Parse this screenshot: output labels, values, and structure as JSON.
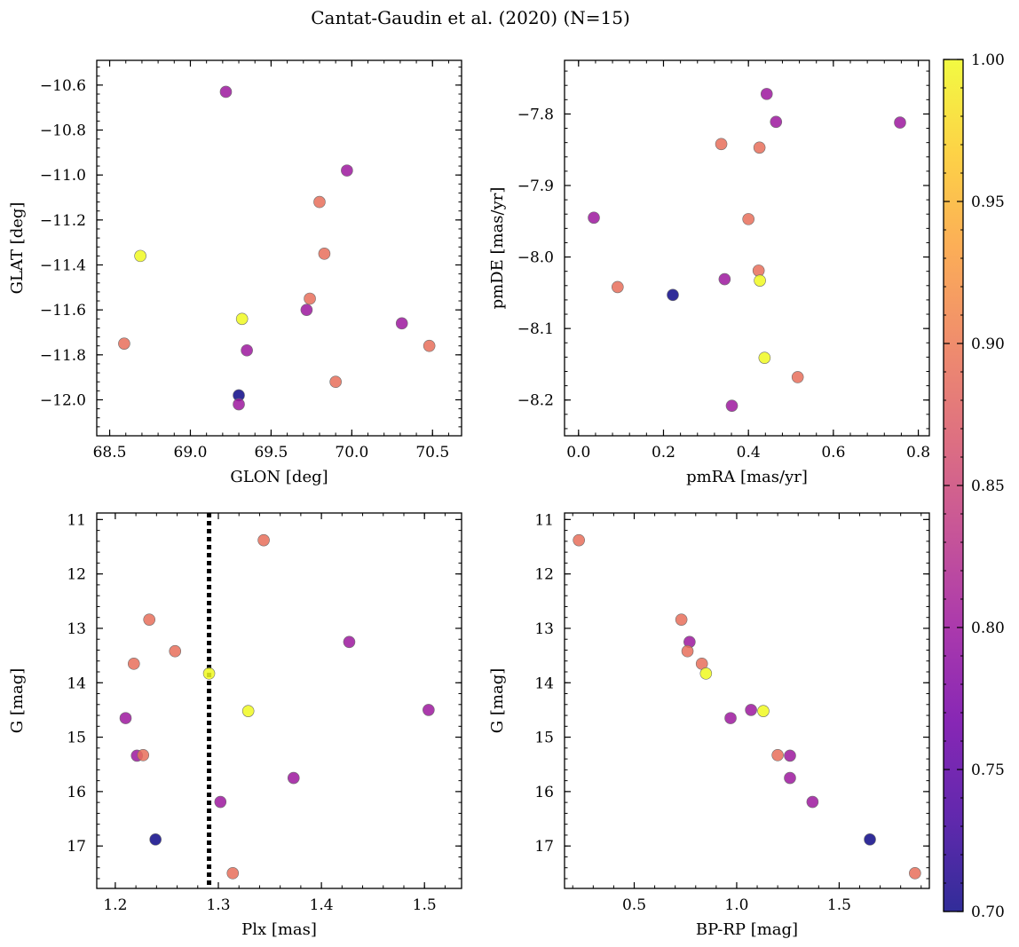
{
  "figure": {
    "title": "Cantat-Gaudin et al. (2020) (N=15)"
  },
  "colorbar": {
    "colormap": "plasma",
    "range": [
      0.7,
      1.0
    ],
    "tick_values": [
      0.7,
      0.75,
      0.8,
      0.85,
      0.9,
      0.95,
      1.0
    ],
    "tick_labels": [
      "0.70",
      "0.75",
      "0.80",
      "0.85",
      "0.90",
      "0.95",
      "1.00"
    ],
    "stops": [
      "#0d0887",
      "#46039f",
      "#7201a8",
      "#9c179e",
      "#bd3786",
      "#d8576b",
      "#ed7953",
      "#fb9f3a",
      "#fdca26",
      "#f0f921"
    ]
  },
  "chart_data": [
    {
      "id": "glon-glat",
      "type": "scatter",
      "xlabel": "GLON [deg]",
      "ylabel": "GLAT [deg]",
      "xlim": [
        68.42,
        70.68
      ],
      "ylim": [
        -12.16,
        -10.49
      ],
      "y_inverted": false,
      "xticks": [
        68.5,
        69.0,
        69.5,
        70.0,
        70.5
      ],
      "xtick_labels": [
        "68.5",
        "69.0",
        "69.5",
        "70.0",
        "70.5"
      ],
      "yticks": [
        -10.6,
        -10.8,
        -11.0,
        -11.2,
        -11.4,
        -11.6,
        -11.8,
        -12.0
      ],
      "ytick_labels": [
        "−10.6",
        "−10.8",
        "−11.0",
        "−11.2",
        "−11.4",
        "−11.6",
        "−11.8",
        "−12.0"
      ],
      "points": [
        {
          "x": 69.22,
          "y": -10.63,
          "c": 0.8
        },
        {
          "x": 69.97,
          "y": -10.98,
          "c": 0.8
        },
        {
          "x": 69.8,
          "y": -11.12,
          "c": 0.89
        },
        {
          "x": 68.69,
          "y": -11.36,
          "c": 1.0
        },
        {
          "x": 69.83,
          "y": -11.35,
          "c": 0.89
        },
        {
          "x": 69.74,
          "y": -11.55,
          "c": 0.89
        },
        {
          "x": 69.72,
          "y": -11.6,
          "c": 0.8
        },
        {
          "x": 69.32,
          "y": -11.64,
          "c": 1.0
        },
        {
          "x": 70.31,
          "y": -11.66,
          "c": 0.8
        },
        {
          "x": 68.59,
          "y": -11.75,
          "c": 0.89
        },
        {
          "x": 70.48,
          "y": -11.76,
          "c": 0.89
        },
        {
          "x": 69.35,
          "y": -11.78,
          "c": 0.8
        },
        {
          "x": 69.9,
          "y": -11.92,
          "c": 0.89
        },
        {
          "x": 69.3,
          "y": -11.98,
          "c": 0.7
        },
        {
          "x": 69.3,
          "y": -12.02,
          "c": 0.8
        }
      ]
    },
    {
      "id": "pmra-pmde",
      "type": "scatter",
      "xlabel": "pmRA [mas/yr]",
      "ylabel": "pmDE [mas/yr]",
      "xlim": [
        -0.033,
        0.826
      ],
      "ylim": [
        -8.25,
        -7.725
      ],
      "y_inverted": false,
      "xticks": [
        0.0,
        0.2,
        0.4,
        0.6,
        0.8
      ],
      "xtick_labels": [
        "0.0",
        "0.2",
        "0.4",
        "0.6",
        "0.8"
      ],
      "yticks": [
        -7.8,
        -7.9,
        -8.0,
        -8.1,
        -8.2
      ],
      "ytick_labels": [
        "−7.8",
        "−7.9",
        "−8.0",
        "−8.1",
        "−8.2"
      ],
      "points": [
        {
          "x": 0.443,
          "y": -7.772,
          "c": 0.8
        },
        {
          "x": 0.465,
          "y": -7.811,
          "c": 0.8
        },
        {
          "x": 0.757,
          "y": -7.812,
          "c": 0.8
        },
        {
          "x": 0.336,
          "y": -7.842,
          "c": 0.89
        },
        {
          "x": 0.426,
          "y": -7.847,
          "c": 0.89
        },
        {
          "x": 0.036,
          "y": -7.945,
          "c": 0.8
        },
        {
          "x": 0.4,
          "y": -7.947,
          "c": 0.89
        },
        {
          "x": 0.424,
          "y": -8.019,
          "c": 0.89
        },
        {
          "x": 0.344,
          "y": -8.031,
          "c": 0.8
        },
        {
          "x": 0.427,
          "y": -8.033,
          "c": 1.0
        },
        {
          "x": 0.092,
          "y": -8.042,
          "c": 0.89
        },
        {
          "x": 0.222,
          "y": -8.053,
          "c": 0.7
        },
        {
          "x": 0.438,
          "y": -8.141,
          "c": 1.0
        },
        {
          "x": 0.516,
          "y": -8.168,
          "c": 0.89
        },
        {
          "x": 0.361,
          "y": -8.208,
          "c": 0.8
        }
      ]
    },
    {
      "id": "plx-g",
      "type": "scatter",
      "xlabel": "Plx [mas]",
      "ylabel": "G [mag]",
      "xlim": [
        1.182,
        1.536
      ],
      "ylim": [
        10.88,
        17.78
      ],
      "y_inverted": true,
      "xticks": [
        1.2,
        1.3,
        1.4,
        1.5
      ],
      "xtick_labels": [
        "1.2",
        "1.3",
        "1.4",
        "1.5"
      ],
      "yticks": [
        11,
        12,
        13,
        14,
        15,
        16,
        17
      ],
      "ytick_labels": [
        "11",
        "12",
        "13",
        "14",
        "15",
        "16",
        "17"
      ],
      "vline": {
        "x": 1.291,
        "style": "dotted"
      },
      "points": [
        {
          "x": 1.344,
          "y": 11.38,
          "c": 0.89
        },
        {
          "x": 1.233,
          "y": 12.84,
          "c": 0.89
        },
        {
          "x": 1.427,
          "y": 13.25,
          "c": 0.8
        },
        {
          "x": 1.258,
          "y": 13.42,
          "c": 0.89
        },
        {
          "x": 1.218,
          "y": 13.65,
          "c": 0.89
        },
        {
          "x": 1.291,
          "y": 13.83,
          "c": 1.0
        },
        {
          "x": 1.504,
          "y": 14.5,
          "c": 0.8
        },
        {
          "x": 1.329,
          "y": 14.52,
          "c": 1.0
        },
        {
          "x": 1.21,
          "y": 14.65,
          "c": 0.8
        },
        {
          "x": 1.221,
          "y": 15.34,
          "c": 0.8
        },
        {
          "x": 1.227,
          "y": 15.33,
          "c": 0.89
        },
        {
          "x": 1.373,
          "y": 15.75,
          "c": 0.8
        },
        {
          "x": 1.302,
          "y": 16.19,
          "c": 0.8
        },
        {
          "x": 1.239,
          "y": 16.88,
          "c": 0.7
        },
        {
          "x": 1.314,
          "y": 17.5,
          "c": 0.89
        }
      ]
    },
    {
      "id": "bprp-g",
      "type": "scatter",
      "xlabel": "BP-RP [mag]",
      "ylabel": "G [mag]",
      "xlim": [
        0.16,
        1.94
      ],
      "ylim": [
        10.88,
        17.78
      ],
      "y_inverted": true,
      "xticks": [
        0.5,
        1.0,
        1.5
      ],
      "xtick_labels": [
        "0.5",
        "1.0",
        "1.5"
      ],
      "yticks": [
        11,
        12,
        13,
        14,
        15,
        16,
        17
      ],
      "ytick_labels": [
        "11",
        "12",
        "13",
        "14",
        "15",
        "16",
        "17"
      ],
      "points": [
        {
          "x": 0.23,
          "y": 11.38,
          "c": 0.89
        },
        {
          "x": 0.73,
          "y": 12.84,
          "c": 0.89
        },
        {
          "x": 0.77,
          "y": 13.25,
          "c": 0.8
        },
        {
          "x": 0.76,
          "y": 13.42,
          "c": 0.89
        },
        {
          "x": 0.83,
          "y": 13.65,
          "c": 0.89
        },
        {
          "x": 0.85,
          "y": 13.83,
          "c": 1.0
        },
        {
          "x": 1.07,
          "y": 14.5,
          "c": 0.8
        },
        {
          "x": 1.13,
          "y": 14.52,
          "c": 1.0
        },
        {
          "x": 0.97,
          "y": 14.65,
          "c": 0.8
        },
        {
          "x": 1.26,
          "y": 15.34,
          "c": 0.8
        },
        {
          "x": 1.2,
          "y": 15.33,
          "c": 0.89
        },
        {
          "x": 1.26,
          "y": 15.75,
          "c": 0.8
        },
        {
          "x": 1.37,
          "y": 16.19,
          "c": 0.8
        },
        {
          "x": 1.65,
          "y": 16.88,
          "c": 0.7
        },
        {
          "x": 1.87,
          "y": 17.5,
          "c": 0.89
        }
      ]
    }
  ]
}
